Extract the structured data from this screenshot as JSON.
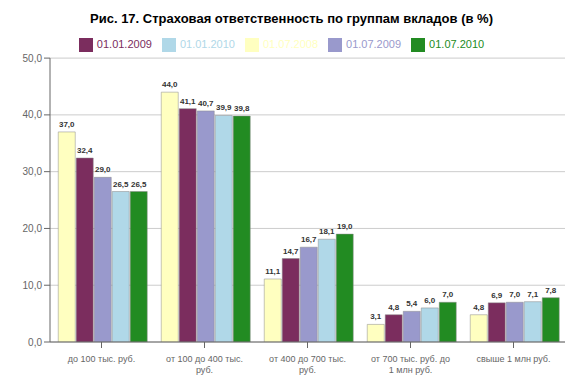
{
  "chart_data": {
    "type": "bar",
    "title": "Рис. 17. Страховая ответственность по группам вкладов (в %)",
    "categories": [
      "до 100 тыс. руб.",
      "от 100 до 400 тыс.\nруб.",
      "от 400 до 700 тыс.\nруб.",
      "от 700 тыс. руб. до\n1 млн руб.",
      "свыше 1 млн руб."
    ],
    "series": [
      {
        "name": "01.07.2008",
        "color": "#FFFFC0",
        "values": [
          37.0,
          44.0,
          11.1,
          3.1,
          4.8
        ],
        "value_labels": [
          "37,0",
          "44,0",
          "11,1",
          "3,1",
          "4,8"
        ]
      },
      {
        "name": "01.01.2009",
        "color": "#7B2D5E",
        "values": [
          32.4,
          41.1,
          14.7,
          4.8,
          6.9
        ],
        "value_labels": [
          "32,4",
          "41,1",
          "14,7",
          "4,8",
          "6,9"
        ]
      },
      {
        "name": "01.07.2009",
        "color": "#9999CC",
        "values": [
          29.0,
          40.7,
          16.7,
          5.4,
          7.0
        ],
        "value_labels": [
          "29,0",
          "40,7",
          "16,7",
          "5,4",
          "7,0"
        ]
      },
      {
        "name": "01.01.2010",
        "color": "#B0D8E8",
        "values": [
          26.5,
          39.9,
          18.1,
          6.0,
          7.1
        ],
        "value_labels": [
          "26,5",
          "39,9",
          "18,1",
          "6,0",
          "7,1"
        ]
      },
      {
        "name": "01.07.2010",
        "color": "#228B22",
        "values": [
          26.5,
          39.8,
          19.0,
          7.0,
          7.8
        ],
        "value_labels": [
          "26,5",
          "39,8",
          "19,0",
          "7,0",
          "7,8"
        ]
      }
    ],
    "ylim": [
      0,
      50
    ],
    "yticks": [
      {
        "value": 0,
        "label": "0,0"
      },
      {
        "value": 10,
        "label": "10,0"
      },
      {
        "value": 20,
        "label": "20,0"
      },
      {
        "value": 30,
        "label": "30,0"
      },
      {
        "value": 40,
        "label": "40,0"
      },
      {
        "value": 50,
        "label": "50,0"
      }
    ],
    "grid": true,
    "legend": "top",
    "data_labels": true
  }
}
